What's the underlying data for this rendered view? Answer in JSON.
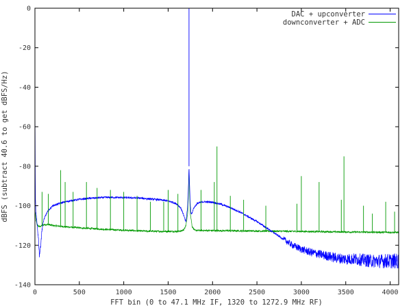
{
  "chart_data": {
    "type": "line",
    "title": "",
    "xlabel": "FFT bin (0 to 47.1 MHz IF, 1320 to 1272.9 MHz RF)",
    "ylabel": "dBFS (subtract 40.6 to get dBFS/Hz)",
    "xlim": [
      0,
      4096
    ],
    "ylim": [
      -140,
      0
    ],
    "xticks": [
      0,
      500,
      1000,
      1500,
      2000,
      2500,
      3000,
      3500,
      4000
    ],
    "yticks": [
      0,
      -20,
      -40,
      -60,
      -80,
      -100,
      -120,
      -140
    ],
    "grid": false,
    "legend_position": "top-right",
    "series": [
      {
        "name": "DAC + upconverter",
        "color": "#0000ff",
        "x": [
          0,
          5,
          10,
          20,
          30,
          40,
          50,
          60,
          70,
          80,
          100,
          130,
          160,
          200,
          300,
          400,
          500,
          600,
          700,
          800,
          900,
          1000,
          1100,
          1200,
          1300,
          1400,
          1500,
          1550,
          1600,
          1640,
          1670,
          1700,
          1720,
          1730,
          1735,
          1740,
          1750,
          1760,
          1790,
          1830,
          1900,
          2000,
          2100,
          2200,
          2300,
          2400,
          2500,
          2600,
          2700,
          2800,
          2900,
          3000,
          3100,
          3200,
          3300,
          3400,
          3500,
          3600,
          3700,
          3800,
          3900,
          4000,
          4096
        ],
        "y": [
          -45,
          -96,
          -103,
          -108,
          -112,
          -117,
          -125,
          -122,
          -117,
          -112,
          -107,
          -104,
          -102,
          -100,
          -98.5,
          -97.5,
          -96.8,
          -96.3,
          -96,
          -95.8,
          -95.8,
          -95.9,
          -96,
          -96.2,
          -96.6,
          -97,
          -97.6,
          -98.2,
          -99.2,
          -101,
          -104,
          -108.5,
          -100,
          -88,
          -80,
          -88,
          -100,
          -104.5,
          -101,
          -98.8,
          -98,
          -98.2,
          -99.3,
          -101,
          -103,
          -105.5,
          -108,
          -111,
          -114,
          -117,
          -120,
          -122,
          -123.5,
          -124.5,
          -125.5,
          -126.5,
          -127,
          -127,
          -127.5,
          -128,
          -128,
          -128,
          -128
        ]
      },
      {
        "name": "downconverter + ADC",
        "color": "#009900",
        "x": [
          0,
          10,
          20,
          40,
          60,
          80,
          100,
          150,
          200,
          300,
          500,
          800,
          1000,
          1200,
          1400,
          1600,
          1650,
          1680,
          1700,
          1720,
          1730,
          1735,
          1740,
          1750,
          1770,
          1800,
          2000,
          2500,
          3000,
          3500,
          4096
        ],
        "y": [
          -102,
          -107,
          -109,
          -110.5,
          -110.5,
          -110,
          -109.6,
          -109.5,
          -110,
          -110.5,
          -111.2,
          -112,
          -112.4,
          -112.8,
          -113,
          -113,
          -112.8,
          -112,
          -110,
          -104,
          -92,
          -80,
          -92,
          -104,
          -110.5,
          -112.5,
          -112.6,
          -112.8,
          -113,
          -113.3,
          -113.5
        ]
      }
    ],
    "spurs": [
      {
        "series": "downconverter + ADC",
        "x": 80,
        "y": -93
      },
      {
        "series": "downconverter + ADC",
        "x": 150,
        "y": -94
      },
      {
        "series": "downconverter + ADC",
        "x": 290,
        "y": -82
      },
      {
        "series": "downconverter + ADC",
        "x": 340,
        "y": -88
      },
      {
        "series": "downconverter + ADC",
        "x": 430,
        "y": -93
      },
      {
        "series": "downconverter + ADC",
        "x": 580,
        "y": -88
      },
      {
        "series": "downconverter + ADC",
        "x": 700,
        "y": -91
      },
      {
        "series": "downconverter + ADC",
        "x": 850,
        "y": -92
      },
      {
        "series": "downconverter + ADC",
        "x": 1000,
        "y": -93
      },
      {
        "series": "downconverter + ADC",
        "x": 1150,
        "y": -95
      },
      {
        "series": "downconverter + ADC",
        "x": 1300,
        "y": -98
      },
      {
        "series": "downconverter + ADC",
        "x": 1450,
        "y": -98
      },
      {
        "series": "downconverter + ADC",
        "x": 1500,
        "y": -92
      },
      {
        "series": "downconverter + ADC",
        "x": 1610,
        "y": -94
      },
      {
        "series": "downconverter + ADC",
        "x": 1870,
        "y": -92
      },
      {
        "series": "downconverter + ADC",
        "x": 2020,
        "y": -88
      },
      {
        "series": "downconverter + ADC",
        "x": 2050,
        "y": -70
      },
      {
        "series": "downconverter + ADC",
        "x": 2200,
        "y": -95
      },
      {
        "series": "downconverter + ADC",
        "x": 2350,
        "y": -97
      },
      {
        "series": "downconverter + ADC",
        "x": 2600,
        "y": -100
      },
      {
        "series": "downconverter + ADC",
        "x": 2950,
        "y": -99
      },
      {
        "series": "downconverter + ADC",
        "x": 3000,
        "y": -85
      },
      {
        "series": "downconverter + ADC",
        "x": 3200,
        "y": -88
      },
      {
        "series": "downconverter + ADC",
        "x": 3450,
        "y": -97
      },
      {
        "series": "downconverter + ADC",
        "x": 3480,
        "y": -75
      },
      {
        "series": "downconverter + ADC",
        "x": 3700,
        "y": -100
      },
      {
        "series": "downconverter + ADC",
        "x": 3800,
        "y": -104
      },
      {
        "series": "downconverter + ADC",
        "x": 3950,
        "y": -98
      },
      {
        "series": "downconverter + ADC",
        "x": 4050,
        "y": -103
      },
      {
        "series": "DAC + upconverter",
        "x": 1735,
        "y": 0
      }
    ]
  }
}
